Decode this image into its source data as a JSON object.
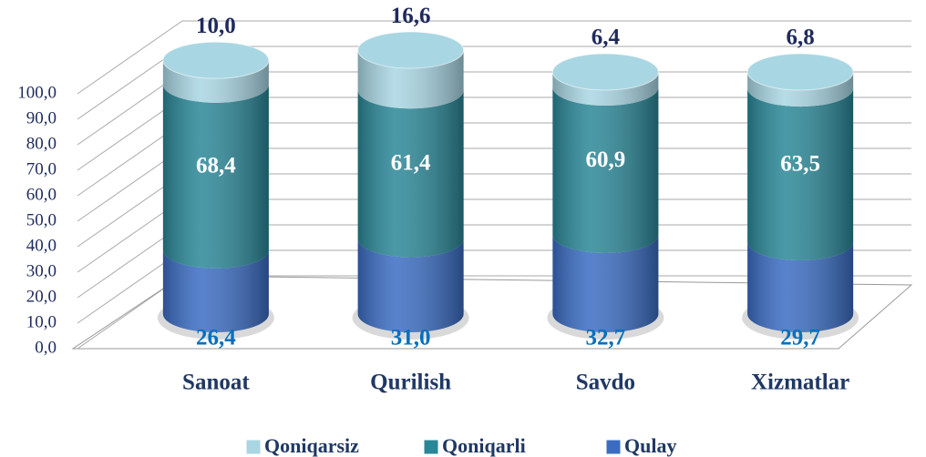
{
  "chart_data": {
    "type": "bar3d-cylinder-stacked",
    "categories": [
      "Sanoat",
      "Qurilish",
      "Savdo",
      "Xizmatlar"
    ],
    "series": [
      {
        "name": "Qulay",
        "color": "#3a6cc2",
        "values": [
          26.4,
          31.0,
          32.7,
          29.7
        ],
        "value_labels": [
          "26,4",
          "31,0",
          "32,7",
          "29,7"
        ]
      },
      {
        "name": "Qoniqarli",
        "color": "#2a8797",
        "values": [
          68.4,
          61.4,
          60.9,
          63.5
        ],
        "value_labels": [
          "68,4",
          "61,4",
          "60,9",
          "63,5"
        ]
      },
      {
        "name": "Qoniqarsiz",
        "color": "#a9d6e3",
        "values": [
          10.0,
          16.6,
          6.4,
          6.8
        ],
        "value_labels": [
          "10,0",
          "16,6",
          "6,4",
          "6,8"
        ]
      }
    ],
    "ylim": [
      0,
      100
    ],
    "yticks": [
      {
        "value": 0,
        "label": "0,0"
      },
      {
        "value": 10,
        "label": "10,0"
      },
      {
        "value": 20,
        "label": "20,0"
      },
      {
        "value": 30,
        "label": "30,0"
      },
      {
        "value": 40,
        "label": "40,0"
      },
      {
        "value": 50,
        "label": "50,0"
      },
      {
        "value": 60,
        "label": "60,0"
      },
      {
        "value": 70,
        "label": "70,0"
      },
      {
        "value": 80,
        "label": "80,0"
      },
      {
        "value": 90,
        "label": "90,0"
      },
      {
        "value": 100,
        "label": "100,0"
      }
    ],
    "grid": true,
    "legend": "bottom"
  }
}
